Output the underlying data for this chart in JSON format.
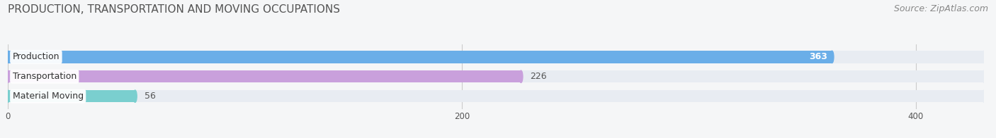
{
  "title": "PRODUCTION, TRANSPORTATION AND MOVING OCCUPATIONS",
  "source": "Source: ZipAtlas.com",
  "categories": [
    "Production",
    "Transportation",
    "Material Moving"
  ],
  "values": [
    363,
    226,
    56
  ],
  "bar_colors": [
    "#6aaee8",
    "#c9a0dc",
    "#7acfcf"
  ],
  "bar_background_color": "#e8ecf2",
  "xlim": [
    0,
    430
  ],
  "xticks": [
    0,
    200,
    400
  ],
  "title_fontsize": 11,
  "source_fontsize": 9,
  "label_fontsize": 9,
  "value_fontsize": 9,
  "background_color": "#f5f6f7",
  "bar_height": 0.62,
  "figsize": [
    14.06,
    1.96
  ]
}
